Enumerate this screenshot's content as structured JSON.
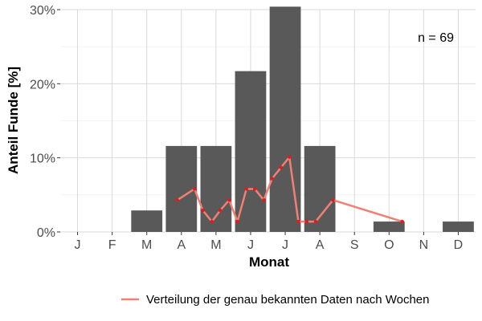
{
  "chart_data": {
    "type": "bar",
    "xlabel": "Monat",
    "ylabel": "Anteil Funde [%]",
    "ylim": [
      0,
      30
    ],
    "yticks": [
      0,
      10,
      20,
      30
    ],
    "ytick_labels": [
      "0%",
      "10%",
      "20%",
      "30%"
    ],
    "categories": [
      "J",
      "F",
      "M",
      "A",
      "M",
      "J",
      "J",
      "A",
      "S",
      "O",
      "N",
      "D"
    ],
    "values": [
      0,
      0,
      2.9,
      11.6,
      11.6,
      21.7,
      30.4,
      11.6,
      0,
      1.4,
      0,
      1.4
    ],
    "annotation": "n = 69",
    "grid": true,
    "legend_position": "bottom",
    "series": [
      {
        "name": "Verteilung der genau bekannten Daten nach Wochen",
        "type": "line",
        "x": [
          3.88,
          4.38,
          4.62,
          4.88,
          5.12,
          5.38,
          5.62,
          5.88,
          6.12,
          6.38,
          6.62,
          6.88,
          7.12,
          7.38,
          7.62,
          7.88,
          8.38,
          10.38
        ],
        "y": [
          4.3,
          5.8,
          2.9,
          1.4,
          2.9,
          4.3,
          1.4,
          5.8,
          5.8,
          4.3,
          7.2,
          8.7,
          10.1,
          1.4,
          1.4,
          1.4,
          4.3,
          1.4
        ]
      }
    ],
    "colors": {
      "bar": "#595959",
      "line": "#f08076",
      "point": "#e31a1c",
      "grid": "#d9d9d9"
    }
  }
}
